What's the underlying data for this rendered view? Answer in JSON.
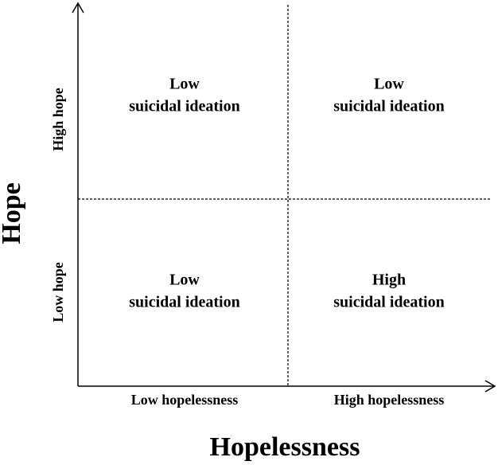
{
  "axes": {
    "y_label": "Hope",
    "x_label": "Hopelessness",
    "y_categories": [
      "High hope",
      "Low hope"
    ],
    "x_categories": [
      "Low hopelessness",
      "High hopelessness"
    ]
  },
  "quadrants": [
    {
      "lines": [
        "Low",
        "suicidal ideation"
      ]
    },
    {
      "lines": [
        "Low",
        "suicidal ideation"
      ]
    },
    {
      "lines": [
        "Low",
        "suicidal ideation"
      ]
    },
    {
      "lines": [
        "High",
        "suicidal ideation"
      ]
    }
  ]
}
